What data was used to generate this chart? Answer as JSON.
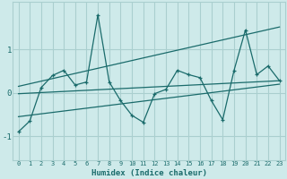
{
  "xlabel": "Humidex (Indice chaleur)",
  "xlim": [
    -0.5,
    23.5
  ],
  "ylim": [
    -1.55,
    2.1
  ],
  "yticks": [
    -1,
    0,
    1
  ],
  "xticks": [
    0,
    1,
    2,
    3,
    4,
    5,
    6,
    7,
    8,
    9,
    10,
    11,
    12,
    13,
    14,
    15,
    16,
    17,
    18,
    19,
    20,
    21,
    22,
    23
  ],
  "bg_color": "#ceeaea",
  "grid_color": "#aacfcf",
  "line_color": "#1a6b6b",
  "line1_x": [
    0,
    1,
    2,
    3,
    4,
    5,
    6,
    7,
    8,
    9,
    10,
    11,
    12,
    13,
    14,
    15,
    16,
    17,
    18,
    19,
    20,
    21,
    22,
    23
  ],
  "line1_y": [
    -0.9,
    -0.65,
    0.12,
    0.4,
    0.52,
    0.18,
    0.25,
    1.8,
    0.25,
    -0.18,
    -0.52,
    -0.68,
    -0.02,
    0.08,
    0.52,
    0.42,
    0.35,
    -0.18,
    -0.62,
    0.52,
    1.45,
    0.42,
    0.62,
    0.28
  ],
  "line2_x": [
    0,
    23
  ],
  "line2_y": [
    -0.02,
    0.28
  ],
  "line3_x": [
    0,
    23
  ],
  "line3_y": [
    -0.55,
    0.2
  ],
  "line4_x": [
    0,
    23
  ],
  "line4_y": [
    0.15,
    1.52
  ]
}
